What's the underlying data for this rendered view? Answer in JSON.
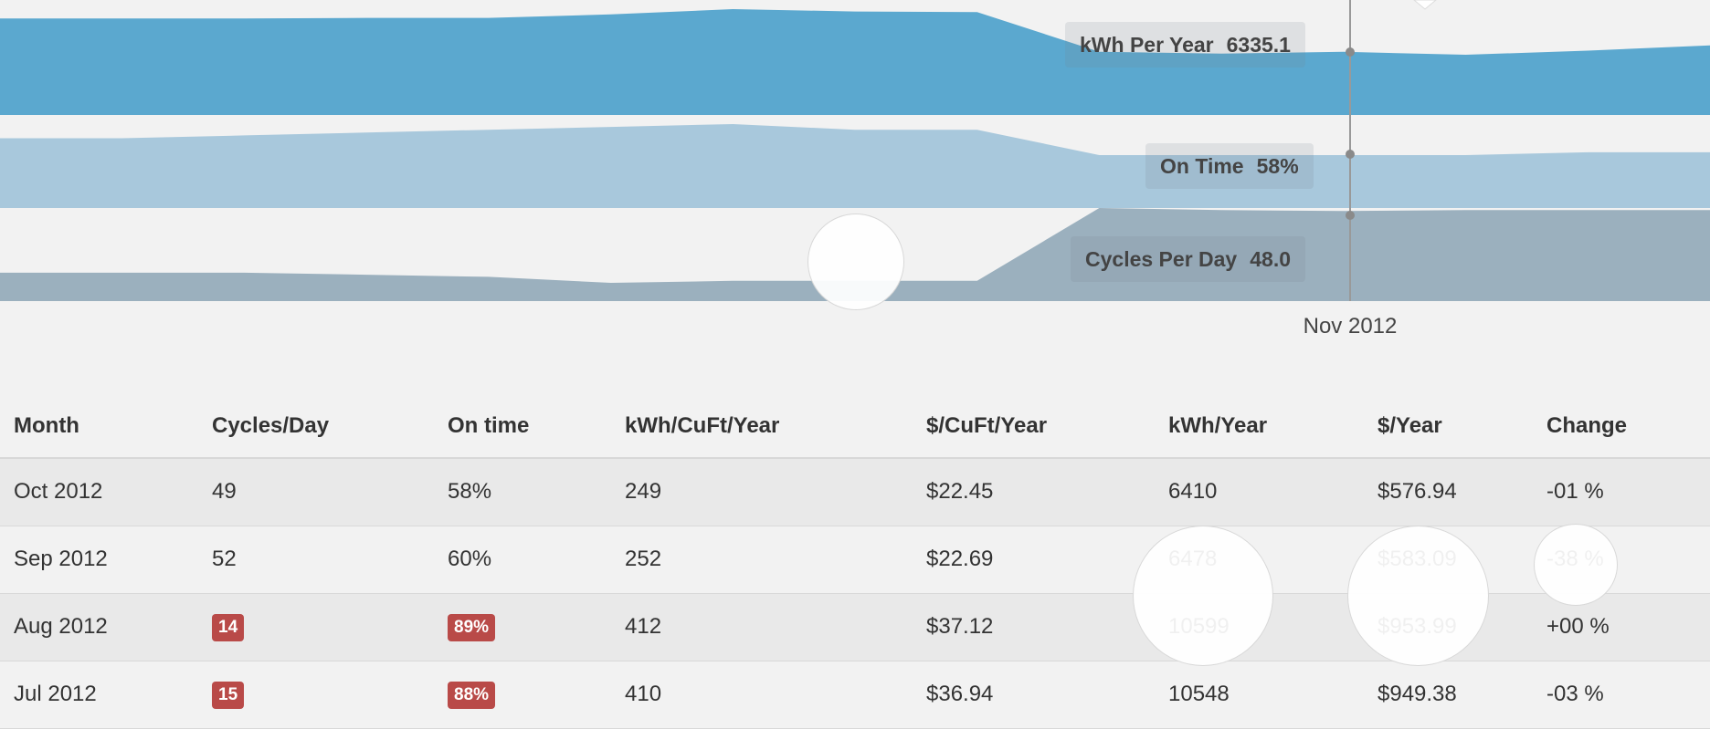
{
  "chart_data": {
    "type": "area",
    "x_label_shown": "Nov 2012",
    "series": [
      {
        "name": "kWh Per Year",
        "tooltip_value": "6335.1",
        "values": [
          6485,
          6485,
          6485,
          6490,
          6490,
          6520,
          6565,
          6545,
          6540,
          6200,
          6185,
          6200,
          6175,
          6210,
          6255
        ],
        "color": "#5ba8cf"
      },
      {
        "name": "On Time",
        "tooltip_value": "58%",
        "values": [
          0.605,
          0.605,
          0.61,
          0.615,
          0.62,
          0.625,
          0.63,
          0.62,
          0.62,
          0.575,
          0.575,
          0.575,
          0.575,
          0.58,
          0.58
        ],
        "color": "#a8c8dc"
      },
      {
        "name": "Cycles Per Day",
        "tooltip_value": "48.0",
        "values": [
          17,
          17,
          17,
          16,
          15,
          12,
          13,
          13,
          13,
          49,
          48,
          47.5,
          48,
          48,
          48
        ],
        "color": "#9bb0be"
      }
    ]
  },
  "table": {
    "headers": [
      "Month",
      "Cycles/Day",
      "On time",
      "kWh/CuFt/Year",
      "$/CuFt/Year",
      "kWh/Year",
      "$/Year",
      "Change"
    ],
    "rows": [
      {
        "month": "Oct 2012",
        "cycles": "49",
        "cycles_flag": false,
        "ontime": "58%",
        "ontime_flag": false,
        "kwh_cuft": "249",
        "cost_cuft": "$22.45",
        "kwh_year": "6410",
        "cost_year": "$576.94",
        "change": "-01 %"
      },
      {
        "month": "Sep 2012",
        "cycles": "52",
        "cycles_flag": false,
        "ontime": "60%",
        "ontime_flag": false,
        "kwh_cuft": "252",
        "cost_cuft": "$22.69",
        "kwh_year": "6478",
        "cost_year": "$583.09",
        "change": "-38 %"
      },
      {
        "month": "Aug 2012",
        "cycles": "14",
        "cycles_flag": true,
        "ontime": "89%",
        "ontime_flag": true,
        "kwh_cuft": "412",
        "cost_cuft": "$37.12",
        "kwh_year": "10599",
        "cost_year": "$953.99",
        "change": "+00 %"
      },
      {
        "month": "Jul 2012",
        "cycles": "15",
        "cycles_flag": true,
        "ontime": "88%",
        "ontime_flag": true,
        "kwh_cuft": "410",
        "cost_cuft": "$36.94",
        "kwh_year": "10548",
        "cost_year": "$949.38",
        "change": "-03 %"
      }
    ]
  },
  "colors": {
    "background": "#f2f2f2",
    "alert_badge": "#b94a48",
    "hover_line": "#999999"
  }
}
